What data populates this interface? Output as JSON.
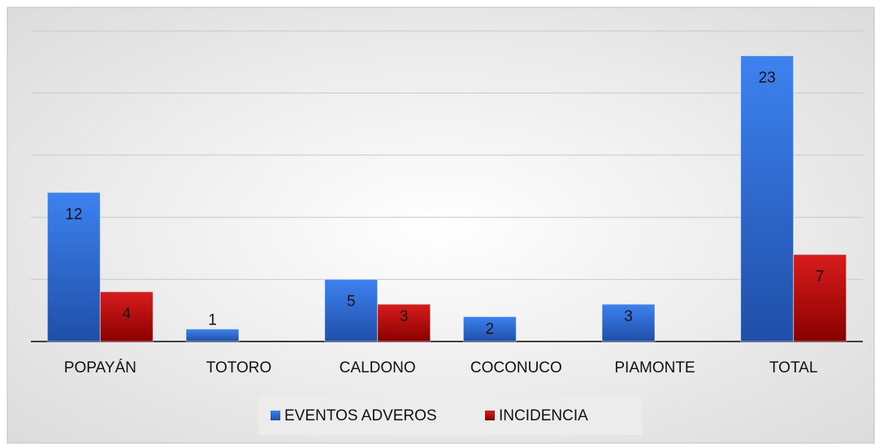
{
  "chart_data": {
    "type": "bar",
    "categories": [
      "POPAYÁN",
      "TOTORO",
      "CALDONO",
      "COCONUCO",
      "PIAMONTE",
      "TOTAL"
    ],
    "series": [
      {
        "name": "EVENTOS ADVEROS",
        "color": "#2e6fd8",
        "values": [
          12,
          1,
          5,
          2,
          3,
          23
        ]
      },
      {
        "name": "INCIDENCIA",
        "color": "#c00000",
        "values": [
          4,
          null,
          3,
          null,
          null,
          7
        ]
      }
    ],
    "ylim": [
      0,
      25
    ],
    "yticks": [
      0,
      5,
      10,
      15,
      20,
      25
    ],
    "grid": true,
    "legend": "bottom"
  }
}
